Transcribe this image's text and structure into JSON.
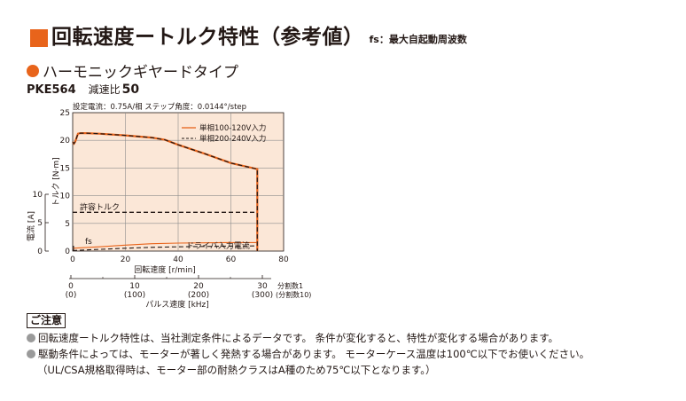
{
  "header": {
    "title": "回転速度ートルク特性（参考値）",
    "title_note": "fs：最大自起動周波数",
    "subtitle": "ハーモニックギヤードタイプ",
    "model": "PKE564",
    "ratio_label": "減速比",
    "ratio_value": "50"
  },
  "chart_data": {
    "type": "line",
    "condition": "設定電流：0.75A/相 ステップ角度：0.0144°/step",
    "ylabel": "トルク [N·m]",
    "ylim": [
      0,
      25
    ],
    "yticks": [
      "0",
      "5",
      "10",
      "15",
      "20",
      "25"
    ],
    "y2label": "電流 [A]",
    "y2lim": [
      0,
      10
    ],
    "y2ticks": [
      "0",
      "5",
      "10"
    ],
    "xlabel": "回転速度 [r/min]",
    "xlim": [
      0,
      80
    ],
    "xticks": [
      "0",
      "20",
      "40",
      "60",
      "80"
    ],
    "x2label": "パルス速度 [kHz]",
    "x2ticks": [
      {
        "value": 0,
        "label": "0",
        "sub": "(0)"
      },
      {
        "value": 10,
        "label": "10",
        "sub": "(100)"
      },
      {
        "value": 20,
        "label": "20",
        "sub": "(200)"
      },
      {
        "value": 30,
        "label": "30",
        "sub": "(300)"
      }
    ],
    "x2_notes": [
      "分割数1",
      "(分割数10)"
    ],
    "grid": true,
    "legend_position": "top-right",
    "series": [
      {
        "name": "単相100-120V入力",
        "style": "solid",
        "color": "#e8641b",
        "x": [
          0,
          0.5,
          1,
          2,
          3,
          5,
          10,
          20,
          30,
          35,
          40,
          50,
          60,
          70,
          70
        ],
        "y": [
          19.7,
          19.4,
          19.8,
          21.2,
          21.3,
          21.3,
          21.2,
          20.9,
          20.5,
          20.1,
          19.2,
          17.6,
          15.9,
          14.8,
          0
        ]
      },
      {
        "name": "単相200-240V入力",
        "style": "dashed",
        "color": "#231815",
        "x": [
          0,
          0.5,
          1,
          2,
          3,
          5,
          10,
          20,
          30,
          35,
          40,
          50,
          60,
          70,
          70
        ],
        "y": [
          19.7,
          19.4,
          19.8,
          21.2,
          21.3,
          21.3,
          21.2,
          20.9,
          20.5,
          20.1,
          19.2,
          17.6,
          15.9,
          14.8,
          0
        ]
      }
    ],
    "current_series": [
      {
        "name": "ドライバ入力電流",
        "style": "solid",
        "color": "#e8641b",
        "x": [
          0,
          10,
          20,
          30,
          40,
          50,
          60,
          70
        ],
        "y": [
          0.5,
          0.75,
          1.05,
          1.3,
          1.4,
          1.45,
          1.5,
          1.5
        ]
      },
      {
        "name": "ドライバ入力電流",
        "style": "dashed",
        "color": "#231815",
        "x": [
          0,
          10,
          20,
          30,
          40,
          50,
          60,
          70
        ],
        "y": [
          0.1,
          0.3,
          0.5,
          0.65,
          0.75,
          0.82,
          0.88,
          0.9
        ]
      }
    ],
    "permissible_torque": {
      "label": "許容トルク",
      "value": 7
    },
    "annotations": [
      {
        "text": "fs"
      },
      {
        "text": "ドライバ入力電流"
      }
    ]
  },
  "notes": {
    "heading": "ご注意",
    "lines": [
      "回転速度ートルク特性は、当社測定条件によるデータです。 条件が変化すると、特性が変化する場合があります。",
      "駆動条件によっては、モーターが著しく発熱する場合があります。 モーターケース温度は100℃以下でお使いください。",
      "（UL/CSA規格取得時は、モーター部の耐熱クラスはA種のため75℃以下となります。）"
    ]
  },
  "colors": {
    "accent": "#e8641b",
    "plot_bg": "#fbe7d7",
    "grid": "#8c8c8c"
  }
}
